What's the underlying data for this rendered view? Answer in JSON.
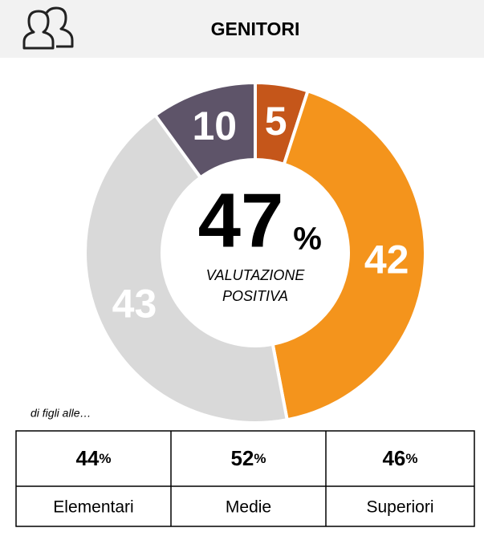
{
  "chart_data": {
    "type": "donut",
    "title": "GENITORI",
    "values": [
      5,
      42,
      43,
      10
    ],
    "colors": [
      "#c5561a",
      "#f4941c",
      "#d9d9d9",
      "#5e5469"
    ],
    "center_value": 47,
    "center_unit": "%",
    "center_caption": [
      "VALUTAZIONE",
      "POSITIVA"
    ],
    "note": "di figli alle…"
  },
  "table": {
    "values": [
      44,
      52,
      46
    ],
    "unit": "%",
    "labels": [
      "Elementari",
      "Medie",
      "Superiori"
    ]
  }
}
